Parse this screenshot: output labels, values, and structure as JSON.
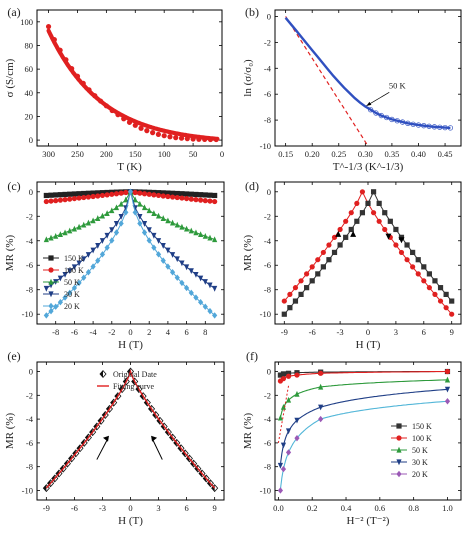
{
  "chart_data": [
    {
      "panel": "(a)",
      "type": "scatter",
      "xlabel": "T (K)",
      "ylabel": "σ (S/cm)",
      "xlim": [
        320,
        0
      ],
      "ylim": [
        -5,
        110
      ],
      "x_ticks": [
        300,
        250,
        200,
        150,
        100,
        50,
        0
      ],
      "y_ticks": [
        0,
        20,
        40,
        60,
        80,
        100
      ],
      "series": [
        {
          "color": "#e02020",
          "x": [
            300,
            290,
            280,
            270,
            260,
            250,
            240,
            230,
            220,
            210,
            200,
            190,
            180,
            170,
            160,
            150,
            140,
            130,
            120,
            110,
            100,
            90,
            80,
            70,
            60,
            50,
            40,
            30,
            20,
            10
          ],
          "y": [
            96,
            85,
            76,
            68,
            60.5,
            54,
            48,
            42.5,
            37.5,
            33,
            29,
            25,
            21.5,
            18,
            15,
            12.5,
            10,
            8,
            6.3,
            4.8,
            3.7,
            2.8,
            2.1,
            1.6,
            1.2,
            0.9,
            0.7,
            0.6,
            0.5,
            0.5
          ]
        }
      ]
    },
    {
      "panel": "(b)",
      "type": "scatter",
      "xlabel": "T^-1/3 (K^-1/3)",
      "ylabel": "ln (σ/σ₀)",
      "xlim": [
        0.13,
        0.48
      ],
      "ylim": [
        -10,
        0.5
      ],
      "x_ticks": [
        0.15,
        0.2,
        0.25,
        0.3,
        0.35,
        0.4,
        0.45
      ],
      "y_ticks": [
        0,
        -2,
        -4,
        -6,
        -8,
        -10
      ],
      "annotations": [
        {
          "text": "50 K",
          "x": 0.33,
          "y": -5.7
        }
      ],
      "series": [
        {
          "color": "#3050c0",
          "x": [
            0.15,
            0.16,
            0.17,
            0.18,
            0.19,
            0.2,
            0.21,
            0.22,
            0.23,
            0.24,
            0.25,
            0.26,
            0.27,
            0.28,
            0.29,
            0.3,
            0.31,
            0.32,
            0.33,
            0.34,
            0.35,
            0.36,
            0.37,
            0.38,
            0.39,
            0.4,
            0.41,
            0.42,
            0.43,
            0.44,
            0.45,
            0.46
          ],
          "y": [
            -0.1,
            -0.6,
            -1.1,
            -1.6,
            -2.1,
            -2.6,
            -3.1,
            -3.6,
            -4.1,
            -4.6,
            -5.05,
            -5.5,
            -5.9,
            -6.3,
            -6.65,
            -6.95,
            -7.2,
            -7.45,
            -7.65,
            -7.8,
            -7.95,
            -8.05,
            -8.15,
            -8.25,
            -8.32,
            -8.38,
            -8.43,
            -8.48,
            -8.52,
            -8.55,
            -8.58,
            -8.6
          ]
        },
        {
          "color": "#e02020",
          "style": "dashed fit",
          "x": [
            0.15,
            0.305
          ],
          "y": [
            0,
            -10
          ]
        }
      ]
    },
    {
      "panel": "(c)",
      "type": "line",
      "xlabel": "H (T)",
      "ylabel": "MR (%)",
      "xlim": [
        -10,
        10
      ],
      "ylim": [
        -10.8,
        0.8
      ],
      "x_ticks": [
        -8,
        -6,
        -4,
        -2,
        0,
        2,
        4,
        6,
        8
      ],
      "y_ticks": [
        0,
        -2,
        -4,
        -6,
        -8,
        -10
      ],
      "legend": "bottom-left",
      "series": [
        {
          "name": "150 K",
          "color": "#222222",
          "marker": "square",
          "x_span": [
            -9,
            9
          ],
          "y_end": -0.3
        },
        {
          "name": "100 K",
          "color": "#e02020",
          "marker": "circle",
          "x_span": [
            -9,
            9
          ],
          "y_end": -0.8
        },
        {
          "name": "50 K",
          "color": "#2e9a3c",
          "marker": "triangle",
          "x_span": [
            -9,
            9
          ],
          "y_end": -3.9
        },
        {
          "name": "30 K",
          "color": "#1f3e86",
          "marker": "triangle-down",
          "x_span": [
            -9,
            9
          ],
          "y_end": -7.9
        },
        {
          "name": "20 K",
          "color": "#52a7d9",
          "marker": "diamond",
          "x_span": [
            -9,
            9
          ],
          "y_end": -10.1
        }
      ]
    },
    {
      "panel": "(d)",
      "type": "line",
      "xlabel": "H (T)",
      "ylabel": "MR (%)",
      "xlim": [
        -10,
        10
      ],
      "ylim": [
        -10.8,
        0.8
      ],
      "x_ticks": [
        -9,
        -6,
        -3,
        0,
        3,
        6,
        9
      ],
      "y_ticks": [
        0,
        -2,
        -4,
        -6,
        -8,
        -10
      ],
      "series": [
        {
          "color": "#e02020",
          "marker": "circle",
          "peak_x": -0.6,
          "x_span": [
            -9,
            9
          ],
          "y_end": -10
        },
        {
          "color": "#333333",
          "marker": "square",
          "peak_x": 0.6,
          "x_span": [
            -9,
            9
          ],
          "y_end": -10
        }
      ]
    },
    {
      "panel": "(e)",
      "type": "line",
      "xlabel": "H (T)",
      "ylabel": "MR (%)",
      "xlim": [
        -10,
        10
      ],
      "ylim": [
        -10.8,
        0.8
      ],
      "x_ticks": [
        -9,
        -6,
        -3,
        0,
        3,
        6,
        9
      ],
      "y_ticks": [
        0,
        -2,
        -4,
        -6,
        -8,
        -10
      ],
      "legend_entries": [
        "Original Date",
        "Fitting curve"
      ],
      "series": [
        {
          "name": "Original Date",
          "color": "#111111",
          "marker": "half-diamond",
          "x_span": [
            -9,
            9
          ],
          "y_end": -9.8
        },
        {
          "name": "Fitting curve",
          "color": "#e02020",
          "x_span": [
            -9,
            9
          ],
          "y_end": -9.8
        }
      ]
    },
    {
      "panel": "(f)",
      "type": "scatter",
      "xlabel": "H⁻² (T⁻²)",
      "ylabel": "MR (%)",
      "xlim": [
        -0.02,
        1.08
      ],
      "ylim": [
        -10.8,
        0.8
      ],
      "x_ticks": [
        0.0,
        0.2,
        0.4,
        0.6,
        0.8,
        1.0
      ],
      "y_ticks": [
        0,
        -2,
        -4,
        -6,
        -8,
        -10
      ],
      "legend": "bottom-right",
      "series": [
        {
          "name": "150 K",
          "color": "#333333",
          "marker": "square",
          "x": [
            0.012,
            0.03,
            0.06,
            0.11,
            0.25,
            1.0
          ],
          "y": [
            -0.3,
            -0.2,
            -0.15,
            -0.1,
            -0.05,
            0
          ]
        },
        {
          "name": "100 K",
          "color": "#e02020",
          "marker": "circle",
          "x": [
            0.012,
            0.03,
            0.06,
            0.11,
            0.25,
            1.0
          ],
          "y": [
            -0.8,
            -0.6,
            -0.4,
            -0.3,
            -0.15,
            0
          ]
        },
        {
          "name": "50 K",
          "color": "#2e9a3c",
          "marker": "triangle",
          "x": [
            0.012,
            0.03,
            0.06,
            0.11,
            0.25,
            1.0
          ],
          "y": [
            -3.9,
            -3.0,
            -2.4,
            -1.9,
            -1.3,
            -0.7
          ]
        },
        {
          "name": "30 K",
          "color": "#1f3e86",
          "marker": "triangle-down",
          "x": [
            0.012,
            0.03,
            0.06,
            0.11,
            0.25,
            1.0
          ],
          "y": [
            -7.9,
            -6.2,
            -5.0,
            -4.1,
            -3.0,
            -1.5
          ]
        },
        {
          "name": "20 K",
          "color": "#9b59b6",
          "marker": "diamond",
          "x": [
            0.012,
            0.03,
            0.06,
            0.11,
            0.25,
            1.0
          ],
          "y": [
            -10.0,
            -8.2,
            -6.8,
            -5.6,
            -4.0,
            -2.5
          ]
        }
      ]
    }
  ]
}
